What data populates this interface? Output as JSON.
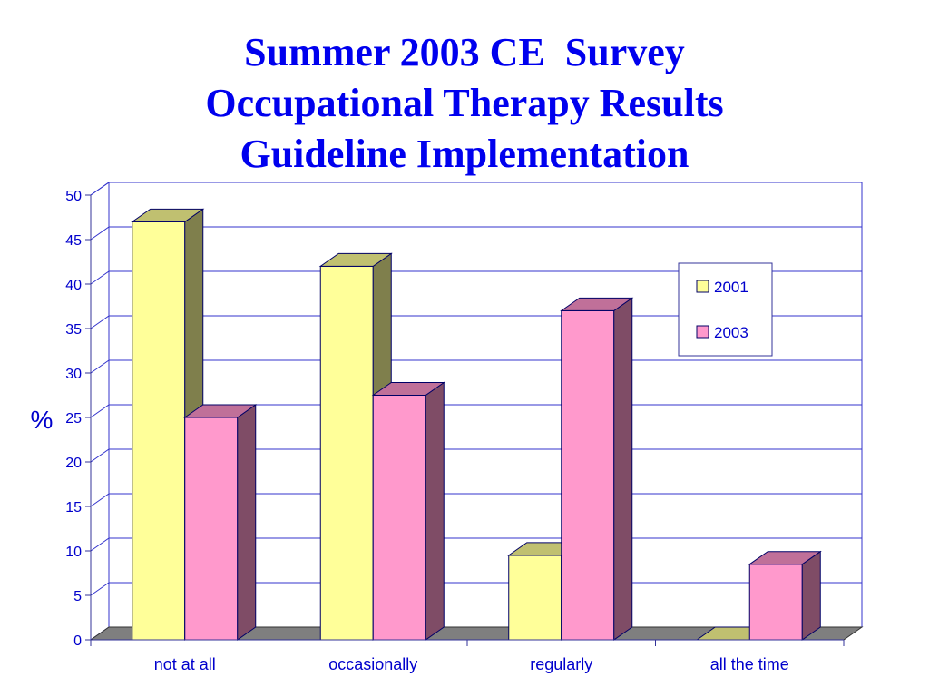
{
  "title_lines": [
    "Summer 2003 CE  Survey",
    "Occupational Therapy Results",
    "Guideline Implementation"
  ],
  "chart_data": {
    "type": "bar",
    "title": "Summer 2003 CE  Survey Occupational Therapy Results Guideline Implementation",
    "ylabel": "%",
    "xlabel": "",
    "ylim": [
      0,
      50
    ],
    "yticks": [
      0,
      5,
      10,
      15,
      20,
      25,
      30,
      35,
      40,
      45,
      50
    ],
    "categories": [
      "not at all",
      "occasionally",
      "regularly",
      "all the time"
    ],
    "series": [
      {
        "name": "2001",
        "values": [
          47,
          42,
          9.5,
          0
        ]
      },
      {
        "name": "2003",
        "values": [
          25,
          27.5,
          37,
          8.5
        ]
      }
    ],
    "grid": true,
    "legend": "right",
    "colors": {
      "2001_front": "#ffff99",
      "2001_top": "#c0c070",
      "2001_side": "#7f7f4c",
      "2003_front": "#ff99cc",
      "2003_top": "#c07099",
      "2003_side": "#7f4c66",
      "floor": "#7f7f7f",
      "grid": "#3333cc",
      "text": "#0000cc"
    }
  }
}
